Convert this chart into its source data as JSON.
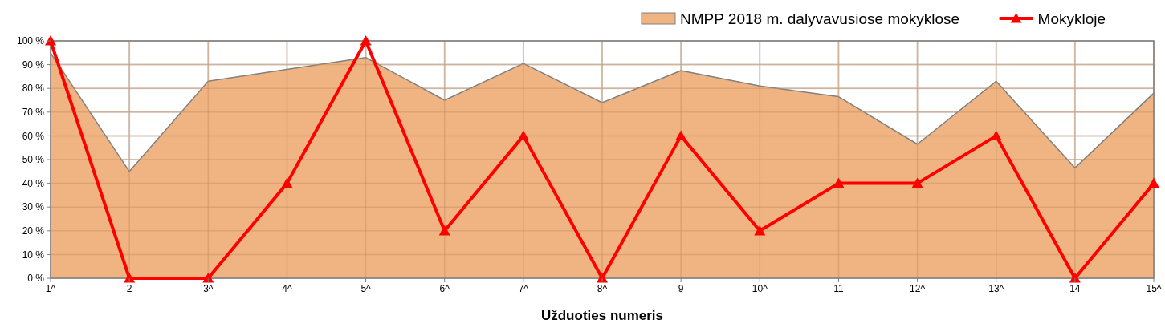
{
  "chart_data": {
    "type": "line",
    "xlabel": "Užduoties numeris",
    "categories": [
      "1^",
      "2",
      "3^",
      "4^",
      "5^",
      "6^",
      "7^",
      "8^",
      "9",
      "10^",
      "11",
      "12^",
      "13^",
      "14",
      "15^"
    ],
    "series": [
      {
        "name": "NMPP 2018 m. dalyvavusiose mokyklose",
        "type": "area",
        "color": "#f0b482",
        "values": [
          95,
          45,
          83,
          88,
          93,
          75,
          90.5,
          74,
          87.5,
          81,
          76.5,
          56.5,
          83,
          46.5,
          78
        ]
      },
      {
        "name": "Mokykloje",
        "color": "#ff0000",
        "marker": "triangle",
        "values": [
          100,
          0,
          0,
          40,
          100,
          20,
          60,
          0,
          60,
          20,
          40,
          40,
          60,
          0,
          40
        ]
      }
    ],
    "ylim": [
      0,
      100
    ],
    "yticks": [
      {
        "value": 0,
        "label": "0 %"
      },
      {
        "value": 10,
        "label": "10 %"
      },
      {
        "value": 20,
        "label": "20 %"
      },
      {
        "value": 30,
        "label": "30 %"
      },
      {
        "value": 40,
        "label": "40 %"
      },
      {
        "value": 50,
        "label": "50 %"
      },
      {
        "value": 60,
        "label": "60 %"
      },
      {
        "value": 70,
        "label": "70 %"
      },
      {
        "value": 80,
        "label": "80 %"
      },
      {
        "value": 90,
        "label": "90 %"
      },
      {
        "value": 100,
        "label": "100 %"
      }
    ],
    "grid": true,
    "legend": "top right"
  }
}
